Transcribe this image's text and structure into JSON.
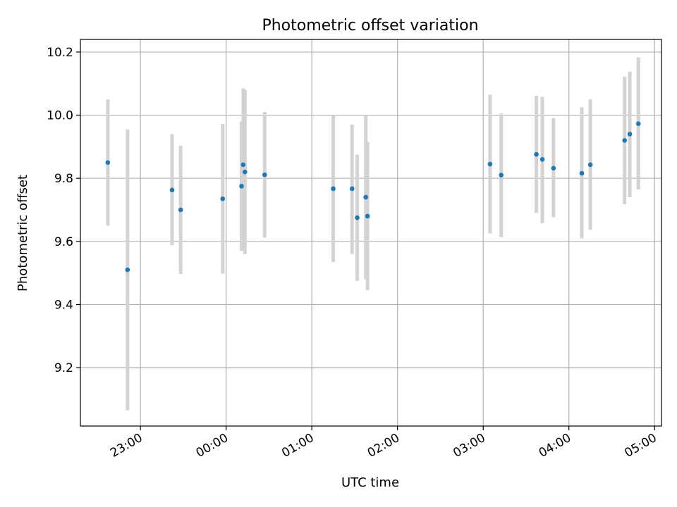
{
  "chart_data": {
    "type": "scatter",
    "title": "Photometric offset variation",
    "xlabel": "UTC time",
    "ylabel": "Photometric offset",
    "x_unit": "hours (UTC), values after 24:00 are next day",
    "xlim": [
      22.3,
      29.08
    ],
    "ylim": [
      9.015,
      10.24
    ],
    "x_ticks": [
      {
        "value": 23,
        "label": "23:00"
      },
      {
        "value": 24,
        "label": "00:00"
      },
      {
        "value": 25,
        "label": "01:00"
      },
      {
        "value": 26,
        "label": "02:00"
      },
      {
        "value": 27,
        "label": "03:00"
      },
      {
        "value": 28,
        "label": "04:00"
      },
      {
        "value": 29,
        "label": "05:00"
      }
    ],
    "y_ticks": [
      {
        "value": 9.2,
        "label": "9.2"
      },
      {
        "value": 9.4,
        "label": "9.4"
      },
      {
        "value": 9.6,
        "label": "9.6"
      },
      {
        "value": 9.8,
        "label": "9.8"
      },
      {
        "value": 10.0,
        "label": "10.0"
      },
      {
        "value": 10.2,
        "label": "10.2"
      }
    ],
    "grid": true,
    "marker_color": "#1f77b4",
    "errorbar_color": "#d3d3d3",
    "points": [
      {
        "x": 22.62,
        "y": 9.85,
        "lo": 9.65,
        "hi": 10.05
      },
      {
        "x": 22.85,
        "y": 9.51,
        "lo": 9.065,
        "hi": 9.955
      },
      {
        "x": 23.37,
        "y": 9.763,
        "lo": 9.588,
        "hi": 9.94
      },
      {
        "x": 23.47,
        "y": 9.7,
        "lo": 9.497,
        "hi": 9.903
      },
      {
        "x": 23.96,
        "y": 9.735,
        "lo": 9.498,
        "hi": 9.972
      },
      {
        "x": 24.18,
        "y": 9.775,
        "lo": 9.57,
        "hi": 9.98
      },
      {
        "x": 24.2,
        "y": 9.843,
        "lo": 9.6,
        "hi": 10.085
      },
      {
        "x": 24.22,
        "y": 9.82,
        "lo": 9.56,
        "hi": 10.08
      },
      {
        "x": 24.45,
        "y": 9.811,
        "lo": 9.612,
        "hi": 10.01
      },
      {
        "x": 25.25,
        "y": 9.767,
        "lo": 9.535,
        "hi": 10.0
      },
      {
        "x": 25.47,
        "y": 9.767,
        "lo": 9.56,
        "hi": 9.97
      },
      {
        "x": 25.53,
        "y": 9.675,
        "lo": 9.475,
        "hi": 9.875
      },
      {
        "x": 25.63,
        "y": 9.74,
        "lo": 9.48,
        "hi": 10.0
      },
      {
        "x": 25.65,
        "y": 9.68,
        "lo": 9.445,
        "hi": 9.915
      },
      {
        "x": 27.08,
        "y": 9.845,
        "lo": 9.625,
        "hi": 10.065
      },
      {
        "x": 27.21,
        "y": 9.81,
        "lo": 9.613,
        "hi": 10.005
      },
      {
        "x": 27.62,
        "y": 9.876,
        "lo": 9.69,
        "hi": 10.062
      },
      {
        "x": 27.69,
        "y": 9.86,
        "lo": 9.658,
        "hi": 10.058
      },
      {
        "x": 27.82,
        "y": 9.832,
        "lo": 9.677,
        "hi": 9.99
      },
      {
        "x": 28.15,
        "y": 9.816,
        "lo": 9.61,
        "hi": 10.025
      },
      {
        "x": 28.25,
        "y": 9.843,
        "lo": 9.637,
        "hi": 10.05
      },
      {
        "x": 28.65,
        "y": 9.92,
        "lo": 9.718,
        "hi": 10.122
      },
      {
        "x": 28.71,
        "y": 9.94,
        "lo": 9.74,
        "hi": 10.138
      },
      {
        "x": 28.81,
        "y": 9.973,
        "lo": 9.765,
        "hi": 10.183
      }
    ]
  }
}
